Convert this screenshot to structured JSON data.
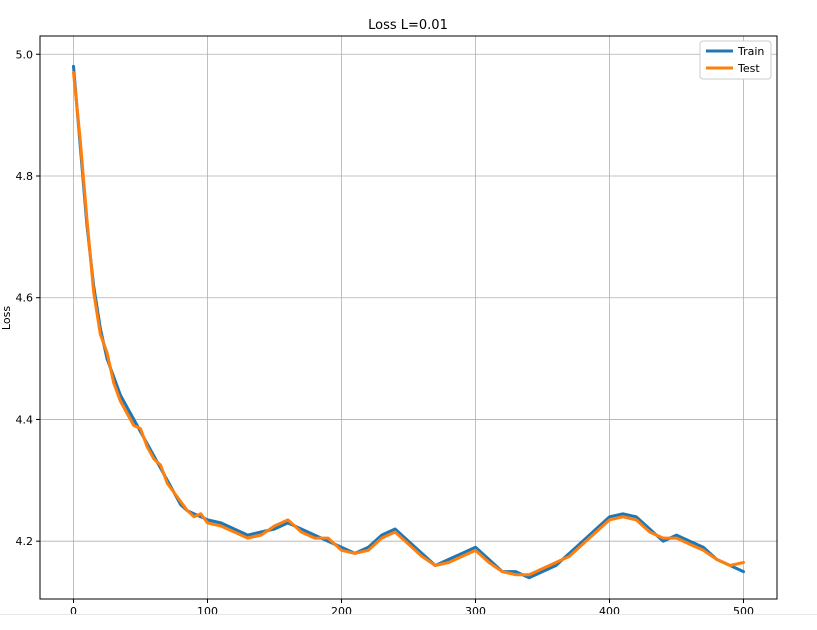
{
  "chart_data": {
    "type": "line",
    "title": "Loss L=0.01",
    "xlabel": "",
    "ylabel": "Loss",
    "xlim": [
      -25,
      525
    ],
    "ylim": [
      4.105,
      5.03
    ],
    "xticks": [
      0,
      100,
      200,
      300,
      400,
      500
    ],
    "yticks": [
      4.2,
      4.4,
      4.6,
      4.8,
      5.0
    ],
    "xtick_labels": [
      "0",
      "100",
      "200",
      "300",
      "400",
      "500"
    ],
    "ytick_labels": [
      "4.2",
      "4.4",
      "4.6",
      "4.8",
      "5.0"
    ],
    "grid": true,
    "legend_position": "top-right",
    "x": [
      0,
      5,
      10,
      15,
      20,
      25,
      30,
      35,
      40,
      45,
      50,
      55,
      60,
      65,
      70,
      75,
      80,
      85,
      90,
      95,
      100,
      110,
      120,
      130,
      140,
      150,
      160,
      170,
      180,
      190,
      200,
      210,
      220,
      230,
      240,
      250,
      260,
      270,
      280,
      290,
      300,
      310,
      320,
      330,
      340,
      350,
      360,
      370,
      380,
      390,
      400,
      410,
      420,
      430,
      440,
      450,
      460,
      470,
      480,
      490,
      500
    ],
    "series": [
      {
        "name": "Train",
        "color": "#1f77b4",
        "values": [
          4.98,
          4.85,
          4.72,
          4.62,
          4.55,
          4.5,
          4.47,
          4.44,
          4.42,
          4.4,
          4.38,
          4.36,
          4.34,
          4.32,
          4.3,
          4.28,
          4.26,
          4.25,
          4.245,
          4.24,
          4.235,
          4.23,
          4.22,
          4.21,
          4.215,
          4.22,
          4.23,
          4.22,
          4.21,
          4.2,
          4.19,
          4.18,
          4.19,
          4.21,
          4.22,
          4.2,
          4.18,
          4.16,
          4.17,
          4.18,
          4.19,
          4.17,
          4.15,
          4.15,
          4.14,
          4.15,
          4.16,
          4.18,
          4.2,
          4.22,
          4.24,
          4.245,
          4.24,
          4.22,
          4.2,
          4.21,
          4.2,
          4.19,
          4.17,
          4.16,
          4.15
        ]
      },
      {
        "name": "Test",
        "color": "#ff7f0e",
        "values": [
          4.97,
          4.86,
          4.73,
          4.61,
          4.54,
          4.51,
          4.46,
          4.43,
          4.41,
          4.39,
          4.385,
          4.355,
          4.335,
          4.325,
          4.295,
          4.28,
          4.265,
          4.25,
          4.24,
          4.245,
          4.23,
          4.225,
          4.215,
          4.205,
          4.21,
          4.225,
          4.235,
          4.215,
          4.205,
          4.205,
          4.185,
          4.18,
          4.185,
          4.205,
          4.215,
          4.195,
          4.175,
          4.16,
          4.165,
          4.175,
          4.185,
          4.165,
          4.15,
          4.145,
          4.145,
          4.155,
          4.165,
          4.175,
          4.195,
          4.215,
          4.235,
          4.24,
          4.235,
          4.215,
          4.205,
          4.205,
          4.195,
          4.185,
          4.17,
          4.16,
          4.165
        ]
      }
    ]
  }
}
